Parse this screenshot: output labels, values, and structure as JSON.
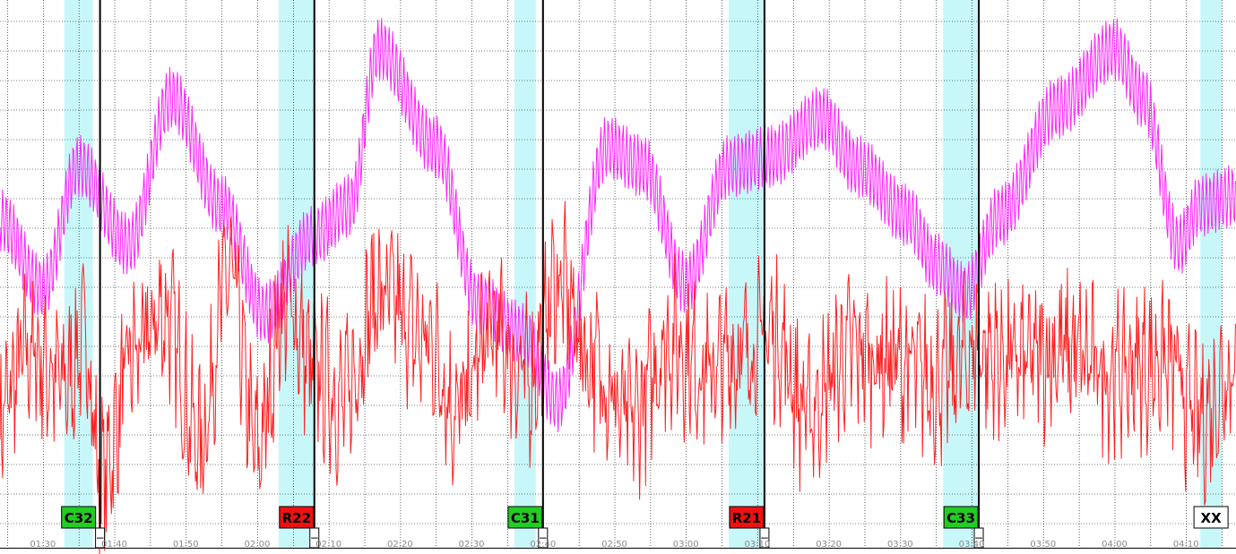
{
  "chart_data": {
    "type": "line",
    "title": "",
    "xlabel": "",
    "ylabel": "",
    "xlim": [
      "01:24",
      "04:17"
    ],
    "grid": true,
    "x_ticks": [
      "01:30",
      "01:40",
      "01:50",
      "02:00",
      "02:10",
      "02:20",
      "02:30",
      "02:40",
      "02:50",
      "03:00",
      "03:10",
      "03:20",
      "03:30",
      "03:40",
      "03:50",
      "04:00",
      "04:10"
    ],
    "colors": {
      "series_magenta": "#ff22ff",
      "series_red": "#ff2020",
      "band": "#c8f7fa",
      "tag_green": "#22cc22",
      "tag_red": "#ee1111",
      "tag_white": "#ffffff",
      "grid": "#000000"
    },
    "series": [
      {
        "key": "magenta",
        "note_shape": "slow oscillation with fast ripple",
        "x": [
          "01:24",
          "01:30",
          "01:35",
          "01:42",
          "01:48",
          "01:55",
          "02:01",
          "02:08",
          "02:13",
          "02:17",
          "02:25",
          "02:31",
          "02:37",
          "02:42",
          "02:49",
          "02:54",
          "03:00",
          "03:06",
          "03:12",
          "03:19",
          "03:24",
          "03:31",
          "03:35",
          "03:39",
          "03:44",
          "03:52",
          "04:00",
          "04:04",
          "04:09",
          "04:12",
          "04:17"
        ],
        "values": [
          0.35,
          -0.35,
          0.9,
          0.1,
          1.6,
          0.5,
          -0.6,
          0.2,
          0.5,
          2.1,
          1.1,
          -0.5,
          -0.8,
          -1.5,
          1.1,
          0.9,
          -0.3,
          0.9,
          1.0,
          1.4,
          0.9,
          0.4,
          -0.1,
          -0.4,
          0.4,
          1.5,
          2.1,
          1.6,
          0.1,
          0.5,
          0.6
        ],
        "ripple": 0.32
      },
      {
        "key": "red",
        "note_shape": "noisy oscillation",
        "x": [
          "01:24",
          "01:28",
          "01:33",
          "01:36",
          "01:38",
          "01:43",
          "01:47",
          "01:52",
          "01:56",
          "02:00",
          "02:04",
          "02:08",
          "02:12",
          "02:17",
          "02:24",
          "02:28",
          "02:33",
          "02:38",
          "02:42",
          "02:47",
          "02:52",
          "02:58",
          "03:03",
          "03:08",
          "03:12",
          "03:17",
          "03:23",
          "03:29",
          "03:35",
          "03:41",
          "03:46",
          "03:53",
          "04:00",
          "04:07",
          "04:12",
          "04:17"
        ],
        "values": [
          -1.6,
          -1.0,
          -1.3,
          -0.9,
          -2.3,
          -1.0,
          -0.6,
          -1.9,
          -0.2,
          -2.0,
          -0.5,
          -1.2,
          -1.5,
          -0.4,
          -0.9,
          -1.6,
          -0.8,
          -1.3,
          -0.3,
          -1.1,
          -1.7,
          -0.9,
          -1.2,
          -1.0,
          -0.8,
          -1.6,
          -1.0,
          -1.1,
          -1.3,
          -1.0,
          -1.1,
          -1.0,
          -1.2,
          -1.1,
          -1.7,
          -1.1
        ],
        "noise": 0.75
      }
    ],
    "bands": [
      {
        "label": "C32",
        "start": "01:33",
        "end": "01:37",
        "marker": "01:38",
        "tag": "green"
      },
      {
        "label": "R22",
        "start": "02:03",
        "end": "02:08",
        "marker": "02:08",
        "tag": "red"
      },
      {
        "label": "C31",
        "start": "02:36",
        "end": "02:39",
        "marker": "02:40",
        "tag": "green"
      },
      {
        "label": "R21",
        "start": "03:06",
        "end": "03:11",
        "marker": "03:11",
        "tag": "red"
      },
      {
        "label": "C33",
        "start": "03:36",
        "end": "03:41",
        "marker": "03:41",
        "tag": "green"
      },
      {
        "label": "XX",
        "start": "04:12",
        "end": "04:15",
        "marker": null,
        "tag": "white"
      }
    ],
    "minus_signs": [
      "−",
      "−",
      "−",
      "−",
      "−"
    ]
  }
}
